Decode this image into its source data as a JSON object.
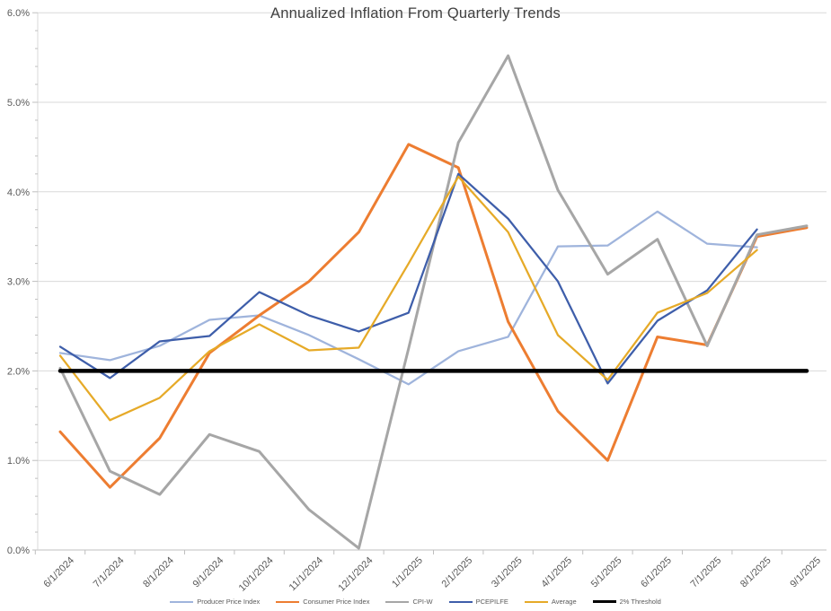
{
  "chart_data": {
    "type": "line",
    "title": "Annualized Inflation From Quarterly Trends",
    "x_labels": [
      "6/1/2024",
      "7/1/2024",
      "8/1/2024",
      "9/1/2024",
      "10/1/2024",
      "11/1/2024",
      "12/1/2024",
      "1/1/2025",
      "2/1/2025",
      "3/1/2025",
      "4/1/2025",
      "5/1/2025",
      "6/1/2025",
      "7/1/2025",
      "8/1/2025",
      "9/1/2025"
    ],
    "y_axis": {
      "min": 0,
      "max": 6,
      "major_step": 1,
      "minor_step": 0.2,
      "labels": [
        "0.0%",
        "1.0%",
        "2.0%",
        "3.0%",
        "4.0%",
        "5.0%",
        "6.0%"
      ],
      "format": "percent"
    },
    "grid": "horizontal-major",
    "legend_position": "bottom",
    "series": [
      {
        "name": "Producer Price Index",
        "color": "#9FB4DC",
        "width": 2.25,
        "values": [
          2.2,
          2.12,
          2.28,
          2.57,
          2.62,
          2.4,
          2.13,
          1.85,
          2.22,
          2.38,
          3.39,
          3.4,
          3.78,
          3.42,
          3.38,
          null
        ]
      },
      {
        "name": "Consumer Price Index",
        "color": "#ED7D31",
        "width": 3,
        "values": [
          1.32,
          0.7,
          1.25,
          2.2,
          2.62,
          3.0,
          3.55,
          4.53,
          4.27,
          2.55,
          1.55,
          1.0,
          2.38,
          2.29,
          3.5,
          3.6
        ]
      },
      {
        "name": "CPI-W",
        "color": "#A6A6A6",
        "width": 3,
        "values": [
          2.03,
          0.88,
          0.62,
          1.29,
          1.1,
          0.45,
          0.02,
          2.25,
          4.55,
          5.52,
          4.02,
          3.08,
          3.47,
          2.28,
          3.52,
          3.62
        ]
      },
      {
        "name": "PCEPILFE",
        "color": "#3E5EAA",
        "width": 2.25,
        "values": [
          2.27,
          1.92,
          2.33,
          2.39,
          2.88,
          2.62,
          2.44,
          2.65,
          4.2,
          3.7,
          3.0,
          1.86,
          2.56,
          2.9,
          3.58,
          null
        ]
      },
      {
        "name": "Average",
        "color": "#E6AA28",
        "width": 2.25,
        "values": [
          2.17,
          1.45,
          1.7,
          2.22,
          2.52,
          2.23,
          2.26,
          3.2,
          4.17,
          3.55,
          2.4,
          1.9,
          2.65,
          2.87,
          3.35,
          null
        ]
      },
      {
        "name": "2% Threshold",
        "color": "#000000",
        "width": 4.5,
        "values": [
          2,
          2,
          2,
          2,
          2,
          2,
          2,
          2,
          2,
          2,
          2,
          2,
          2,
          2,
          2,
          2
        ]
      }
    ]
  },
  "colors": {
    "gridline": "#D9D9D9",
    "axis_line": "#BFBFBF",
    "tick": "#BFBFBF",
    "axis_text": "#595959",
    "title_text": "#404040"
  }
}
